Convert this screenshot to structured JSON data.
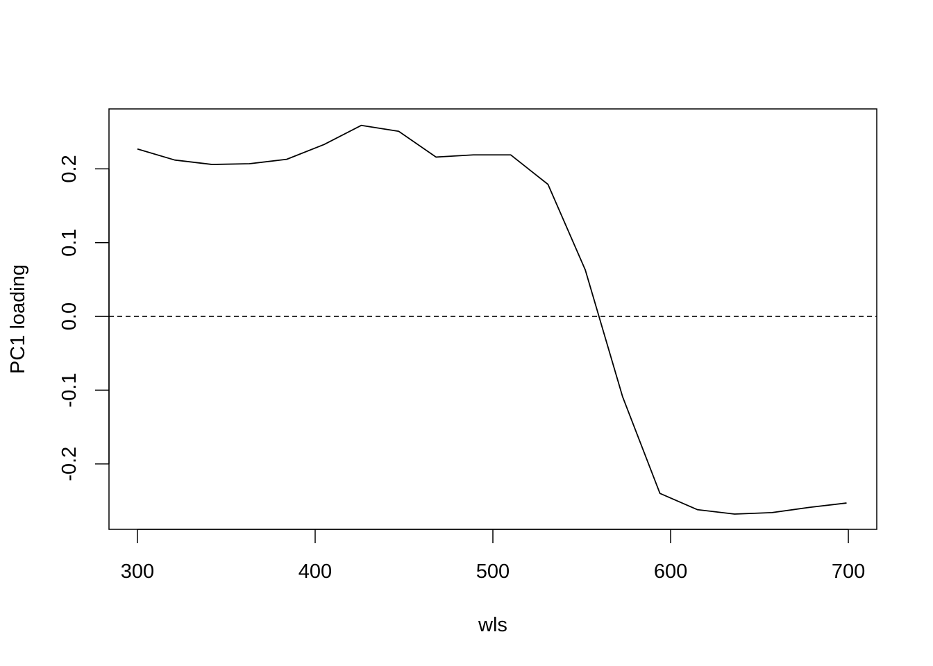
{
  "chart_data": {
    "type": "line",
    "title": "",
    "xlabel": "wls",
    "ylabel": "PC1 loading",
    "x_ticks": [
      300,
      400,
      500,
      600,
      700
    ],
    "y_ticks": [
      -0.2,
      -0.1,
      0.0,
      0.1,
      0.2
    ],
    "x_tick_labels": [
      "300",
      "400",
      "500",
      "600",
      "700"
    ],
    "y_tick_labels": [
      "-0.2",
      "-0.1",
      "0.0",
      "0.1",
      "0.2"
    ],
    "xlim": [
      284,
      716
    ],
    "ylim": [
      -0.2887,
      0.2813
    ],
    "grid": false,
    "reference_line": {
      "y": 0.0,
      "style": "dashed"
    },
    "series": [
      {
        "x": [
          300,
          321,
          342,
          363,
          384,
          405,
          426,
          447,
          468,
          489,
          510,
          531,
          552,
          573,
          594,
          615,
          636,
          657,
          678,
          699
        ],
        "y": [
          0.227,
          0.212,
          0.206,
          0.207,
          0.213,
          0.233,
          0.259,
          0.251,
          0.216,
          0.219,
          0.219,
          0.179,
          0.063,
          -0.109,
          -0.24,
          -0.262,
          -0.268,
          -0.266,
          -0.259,
          -0.253
        ]
      }
    ]
  }
}
